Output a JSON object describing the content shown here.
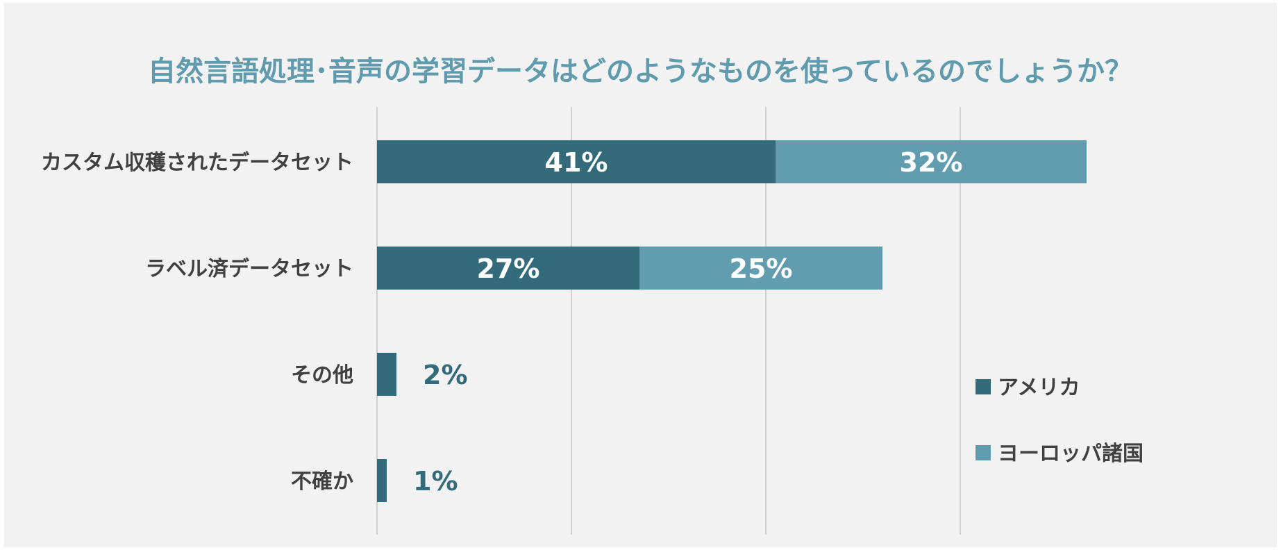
{
  "chart_data": {
    "type": "bar",
    "orientation": "horizontal",
    "stacked": true,
    "title": "自然言語処理･音声の学習データはどのようなものを使っているのでしょうか？",
    "categories": [
      "カスタム収穫されたデータセット",
      "ラベル済データセット",
      "その他",
      "不確か"
    ],
    "series": [
      {
        "name": "アメリカ",
        "color": "#336b7a",
        "values": [
          41,
          27,
          2,
          1
        ],
        "labels": [
          "41%",
          "27%",
          "2%",
          "1%"
        ]
      },
      {
        "name": "ヨーロッパ諸国",
        "color": "#619dae",
        "values": [
          32,
          25,
          null,
          null
        ],
        "labels": [
          "32%",
          "25%",
          "",
          ""
        ]
      }
    ],
    "xlim": [
      0,
      80
    ],
    "x_gridlines": [
      0,
      20,
      40,
      60
    ],
    "x_tick_labels_visible": false,
    "grid": true,
    "legend_position": "bottom-right"
  }
}
